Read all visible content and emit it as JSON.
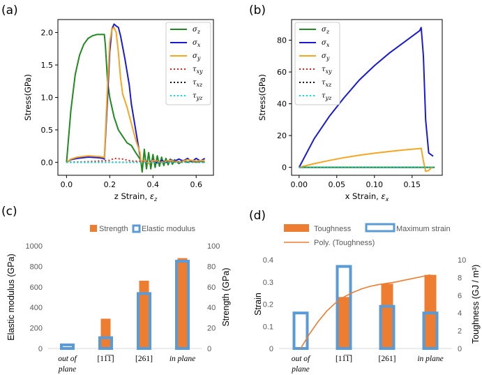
{
  "chart_data": [
    {
      "panel": "(a)",
      "type": "line",
      "xlabel_text": "z Strain, ",
      "xlabel_sym": "ε",
      "xlabel_sub": "z",
      "ylabel": "Stress(GPa)",
      "xlim": [
        -0.04,
        0.68
      ],
      "ylim": [
        -0.2,
        2.2
      ],
      "xticks": [
        0.0,
        0.2,
        0.4,
        0.6
      ],
      "xtick_labels": [
        "0.0",
        "0.2",
        "0.4",
        "0.6"
      ],
      "yticks": [
        0.0,
        0.5,
        1.0,
        1.5,
        2.0
      ],
      "ytick_labels": [
        "0.0",
        "0.5",
        "1.0",
        "1.5",
        "2.0"
      ],
      "legend_position": "top-right",
      "series": [
        {
          "name": "σz",
          "sym": "σ",
          "sub": "z",
          "color": "#1f8a1f",
          "style": "solid",
          "x": [
            0.0,
            0.02,
            0.04,
            0.06,
            0.08,
            0.1,
            0.12,
            0.14,
            0.16,
            0.175,
            0.18,
            0.19,
            0.2,
            0.22,
            0.24,
            0.26,
            0.28,
            0.3,
            0.32,
            0.34,
            0.345,
            0.35,
            0.36,
            0.37,
            0.38,
            0.39,
            0.4,
            0.41,
            0.42,
            0.43,
            0.44,
            0.45,
            0.46,
            0.47,
            0.48,
            0.49,
            0.5,
            0.52,
            0.54,
            0.56,
            0.58,
            0.6,
            0.62,
            0.64
          ],
          "y": [
            0.0,
            0.8,
            1.35,
            1.65,
            1.82,
            1.91,
            1.95,
            1.97,
            1.97,
            1.97,
            1.8,
            1.25,
            1.0,
            0.7,
            0.5,
            0.4,
            0.3,
            0.26,
            0.15,
            0.05,
            0.0,
            -0.15,
            0.2,
            -0.1,
            0.15,
            -0.1,
            0.12,
            -0.08,
            0.1,
            -0.06,
            0.08,
            -0.05,
            0.06,
            -0.04,
            0.05,
            -0.03,
            0.04,
            -0.02,
            0.03,
            0.0,
            0.02,
            0.0,
            0.02,
            0.0
          ]
        },
        {
          "name": "σx",
          "sym": "σ",
          "sub": "x",
          "color": "#1a1ad6",
          "style": "solid",
          "x": [
            0.0,
            0.02,
            0.05,
            0.1,
            0.15,
            0.17,
            0.175,
            0.19,
            0.2,
            0.21,
            0.22,
            0.23,
            0.24,
            0.25,
            0.27,
            0.29,
            0.3,
            0.31,
            0.32,
            0.33,
            0.34,
            0.345,
            0.36,
            0.38,
            0.4,
            0.42,
            0.44,
            0.46,
            0.48,
            0.5,
            0.52,
            0.54,
            0.56,
            0.58,
            0.6,
            0.62,
            0.64
          ],
          "y": [
            0.0,
            0.04,
            0.06,
            0.08,
            0.07,
            0.06,
            0.05,
            1.0,
            1.7,
            2.05,
            2.13,
            2.1,
            2.08,
            1.95,
            1.6,
            1.2,
            0.9,
            0.7,
            0.5,
            0.3,
            0.1,
            0.0,
            0.03,
            -0.02,
            0.04,
            -0.01,
            0.03,
            0.0,
            0.04,
            0.02,
            0.05,
            0.02,
            0.06,
            0.01,
            0.06,
            0.02,
            0.06
          ]
        },
        {
          "name": "σy",
          "sym": "σ",
          "sub": "y",
          "color": "#f5a623",
          "style": "solid",
          "x": [
            0.0,
            0.02,
            0.05,
            0.1,
            0.15,
            0.17,
            0.175,
            0.19,
            0.2,
            0.21,
            0.22,
            0.23,
            0.24,
            0.25,
            0.26,
            0.27,
            0.28,
            0.3,
            0.32,
            0.34,
            0.345,
            0.36,
            0.38,
            0.4,
            0.44,
            0.48,
            0.52,
            0.56,
            0.6,
            0.64
          ],
          "y": [
            0.0,
            0.05,
            0.08,
            0.1,
            0.09,
            0.08,
            0.07,
            1.2,
            1.85,
            2.05,
            2.08,
            2.0,
            1.7,
            1.3,
            1.05,
            0.95,
            0.85,
            0.6,
            0.35,
            0.15,
            0.0,
            0.03,
            -0.02,
            0.03,
            0.0,
            0.03,
            0.0,
            0.04,
            0.02,
            0.03
          ]
        },
        {
          "name": "τxy",
          "sym": "τ",
          "sub": "xy",
          "color": "#e02020",
          "style": "dotted",
          "x": [
            0.0,
            0.1,
            0.2,
            0.22,
            0.26,
            0.3,
            0.4,
            0.5,
            0.64
          ],
          "y": [
            0.0,
            0.01,
            0.03,
            0.06,
            0.05,
            0.02,
            0.01,
            0.01,
            0.0
          ]
        },
        {
          "name": "τxz",
          "sym": "τ",
          "sub": "xz",
          "color": "#000000",
          "style": "dotted",
          "x": [
            0.0,
            0.2,
            0.4,
            0.64
          ],
          "y": [
            0.0,
            0.0,
            0.0,
            0.0
          ]
        },
        {
          "name": "τyz",
          "sym": "τ",
          "sub": "yz",
          "color": "#00e0e0",
          "style": "dotted",
          "x": [
            0.0,
            0.2,
            0.4,
            0.64
          ],
          "y": [
            0.0,
            0.0,
            0.0,
            0.0
          ]
        }
      ]
    },
    {
      "panel": "(b)",
      "type": "line",
      "xlabel_text": "x Strain, ",
      "xlabel_sym": "ε",
      "xlabel_sub": "x",
      "ylabel": "Stress(GPa)",
      "xlim": [
        -0.01,
        0.19
      ],
      "ylim": [
        -5,
        93
      ],
      "xticks": [
        0.0,
        0.05,
        0.1,
        0.15
      ],
      "xtick_labels": [
        "0.00",
        "0.05",
        "0.10",
        "0.15"
      ],
      "yticks": [
        0,
        20,
        40,
        60,
        80
      ],
      "ytick_labels": [
        "0",
        "20",
        "40",
        "60",
        "80"
      ],
      "legend_position": "top-left",
      "series": [
        {
          "name": "σz",
          "sym": "σ",
          "sub": "z",
          "color": "#1f8a1f",
          "style": "solid",
          "x": [
            0.0,
            0.18
          ],
          "y": [
            0.0,
            0.0
          ]
        },
        {
          "name": "σx",
          "sym": "σ",
          "sub": "x",
          "color": "#1a1ad6",
          "style": "solid",
          "x": [
            0.0,
            0.02,
            0.04,
            0.06,
            0.08,
            0.1,
            0.12,
            0.14,
            0.16,
            0.162,
            0.165,
            0.168,
            0.172,
            0.178
          ],
          "y": [
            0.0,
            18,
            32,
            44,
            55,
            64,
            72,
            79,
            86,
            88,
            70,
            30,
            9,
            7
          ]
        },
        {
          "name": "σy",
          "sym": "σ",
          "sub": "y",
          "color": "#f5a623",
          "style": "solid",
          "x": [
            0.0,
            0.02,
            0.04,
            0.06,
            0.08,
            0.1,
            0.12,
            0.14,
            0.16,
            0.162,
            0.165,
            0.168,
            0.172,
            0.176,
            0.178
          ],
          "y": [
            0.0,
            2.3,
            4.3,
            6.1,
            7.6,
            8.9,
            10.0,
            11.0,
            11.8,
            12.0,
            4.0,
            -2.5,
            -2.0,
            0.0,
            0.0
          ]
        },
        {
          "name": "τxy",
          "sym": "τ",
          "sub": "xy",
          "color": "#e02020",
          "style": "dotted",
          "x": [
            0.0,
            0.18
          ],
          "y": [
            0.0,
            0.0
          ]
        },
        {
          "name": "τxz",
          "sym": "τ",
          "sub": "xz",
          "color": "#000000",
          "style": "dotted",
          "x": [
            0.0,
            0.18
          ],
          "y": [
            0.0,
            0.0
          ]
        },
        {
          "name": "τyz",
          "sym": "τ",
          "sub": "yz",
          "color": "#00e0e0",
          "style": "dotted",
          "x": [
            0.0,
            0.18
          ],
          "y": [
            0.0,
            0.0
          ]
        }
      ]
    },
    {
      "panel": "(c)",
      "type": "bar",
      "categories": [
        {
          "lines": [
            "out of",
            "plane"
          ],
          "italic": true
        },
        {
          "lines": [
            "[11̅1̅]"
          ],
          "italic": false
        },
        {
          "lines": [
            "[261]"
          ],
          "italic": false
        },
        {
          "lines": [
            "in plane"
          ],
          "italic": true
        }
      ],
      "ylabel_left": "Elastic modulus (GPa)",
      "ylabel_right": "Strength (GPa)",
      "ylim_left": [
        0,
        1000
      ],
      "ylim_right": [
        0,
        100
      ],
      "yticks_left": [
        "0",
        "200",
        "400",
        "600",
        "800",
        "1000"
      ],
      "yticks_right": [
        "0",
        "20",
        "40",
        "60",
        "80",
        "100"
      ],
      "legend_position": "top",
      "series": [
        {
          "name": "Strength",
          "axis": "right",
          "style": "filled",
          "color": "#ed7d31",
          "values": [
            null,
            29,
            66,
            88
          ]
        },
        {
          "name": "Elastic modulus",
          "axis": "left",
          "style": "outline",
          "color": "#5b9bd5",
          "values": [
            35,
            105,
            535,
            850
          ]
        }
      ]
    },
    {
      "panel": "(d)",
      "type": "bar",
      "categories": [
        {
          "lines": [
            "out of",
            "plane"
          ],
          "italic": true
        },
        {
          "lines": [
            "[11̅1̅]"
          ],
          "italic": false
        },
        {
          "lines": [
            "[261]"
          ],
          "italic": false
        },
        {
          "lines": [
            "in plane"
          ],
          "italic": true
        }
      ],
      "ylabel_left": "Strain",
      "ylabel_right": "Toughness (GJ / m³)",
      "ylim_left": [
        0,
        0.4
      ],
      "ylim_right": [
        0,
        10
      ],
      "yticks_left": [
        "0",
        "0.1",
        "0.2",
        "0.3",
        "0.4"
      ],
      "yticks_right": [
        "0",
        "2",
        "4",
        "6",
        "8",
        "10"
      ],
      "legend_position": "top",
      "series": [
        {
          "name": "Toughness",
          "axis": "right",
          "style": "filled",
          "color": "#ed7d31",
          "values": [
            null,
            5.8,
            7.3,
            8.3
          ]
        },
        {
          "name": "Maximum strain",
          "axis": "left",
          "style": "outline",
          "color": "#5b9bd5",
          "values": [
            0.16,
            0.37,
            0.19,
            0.16
          ]
        }
      ],
      "trendline": {
        "name": "Poly. (Toughness)",
        "color": "#ed7d31",
        "x": [
          0.0,
          0.2,
          0.4,
          0.6,
          0.8,
          1.0,
          1.2,
          1.4,
          1.6,
          1.8,
          2.0,
          2.2,
          2.4,
          2.6,
          2.8,
          3.0
        ],
        "y": [
          0.0,
          1.6,
          3.0,
          4.2,
          5.1,
          5.8,
          6.3,
          6.7,
          7.0,
          7.2,
          7.35,
          7.5,
          7.7,
          7.9,
          8.1,
          8.3
        ]
      }
    }
  ]
}
